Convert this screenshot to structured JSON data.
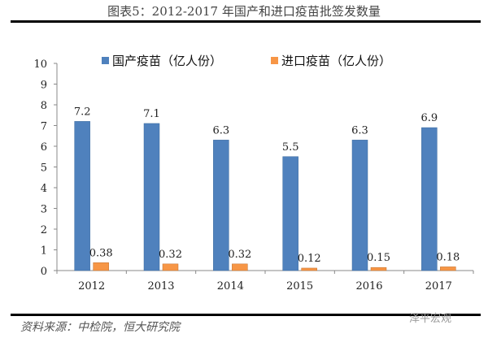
{
  "chart_data": {
    "type": "bar",
    "title": "图表5：2012-2017 年国产和进口疫苗批签发数量",
    "categories": [
      "2012",
      "2013",
      "2014",
      "2015",
      "2016",
      "2017"
    ],
    "series": [
      {
        "name": "国产疫苗（亿人份）",
        "values": [
          7.2,
          7.1,
          6.3,
          5.5,
          6.3,
          6.9
        ],
        "color": "#4f81bd",
        "labels": [
          "7.2",
          "7.1",
          "6.3",
          "5.5",
          "6.3",
          "6.9"
        ]
      },
      {
        "name": "进口疫苗（亿人份）",
        "values": [
          0.38,
          0.32,
          0.32,
          0.12,
          0.15,
          0.18
        ],
        "color": "#f79646",
        "labels": [
          "0.38",
          "0.32",
          "0.32",
          "0.12",
          "0.15",
          "0.18"
        ]
      }
    ],
    "ylim": [
      0,
      10
    ],
    "yticks": [
      "0",
      "1",
      "2",
      "3",
      "4",
      "5",
      "6",
      "7",
      "8",
      "9",
      "10"
    ],
    "legend": "top",
    "grid": false,
    "xlabel": "",
    "ylabel": ""
  },
  "source": "资料来源：中检院，恒大研究院",
  "watermark": "泽平宏观"
}
